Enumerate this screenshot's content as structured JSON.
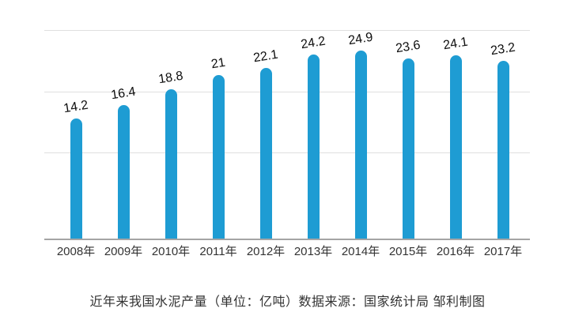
{
  "chart_data": {
    "type": "bar",
    "categories": [
      "2008年",
      "2009年",
      "2010年",
      "2011年",
      "2012年",
      "2013年",
      "2014年",
      "2015年",
      "2016年",
      "2017年"
    ],
    "values": [
      14.2,
      16.4,
      18.8,
      21,
      22.1,
      24.2,
      24.9,
      23.6,
      24.1,
      23.2
    ],
    "value_labels": [
      "14.2",
      "16.4",
      "18.8",
      "21",
      "22.1",
      "24.2",
      "24.9",
      "23.6",
      "24.1",
      "23.2"
    ],
    "title": "",
    "xlabel": "",
    "ylabel": "",
    "caption": "近年来我国水泥产量（单位：亿吨）数据来源：国家统计局 邹利制图",
    "unit": "亿吨",
    "source": "国家统计局",
    "credit": "邹利制图",
    "legend_position": "none",
    "grid": true,
    "y_tick_labels_visible": false,
    "colors": {
      "bar": "#1e9cd3",
      "gridline": "#dfdfdf",
      "axis_line": "#a5a5a5",
      "value_label": "#0d0d0d",
      "category_label": "#333333",
      "caption_text": "#333333",
      "background": "#ffffff"
    }
  }
}
